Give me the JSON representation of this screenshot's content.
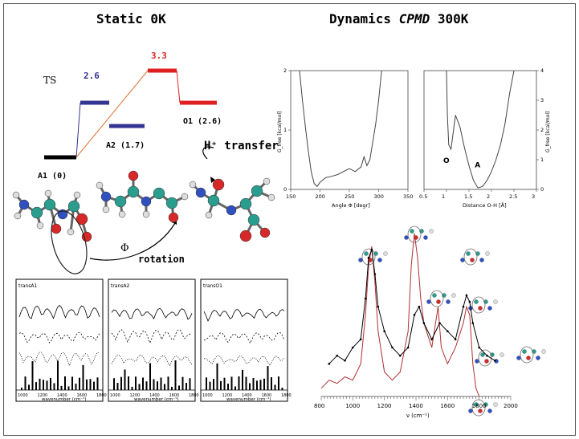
{
  "left": {
    "title": "Static 0K",
    "energy": {
      "ts_label": "TS",
      "ts_value": "2.6",
      "a2_label": "A2 (1.7)",
      "peak_value": "3.3",
      "o1_label": "O1 (2.6)",
      "a1_label": "A1 (0)",
      "transfer_label": "H⁺ transfer",
      "phi_symbol": "Φ",
      "rotation_label": "rotation"
    },
    "spectra": [
      {
        "name": "transA1"
      },
      {
        "name": "transA2"
      },
      {
        "name": "transO1"
      }
    ],
    "spectra_xticks": [
      "1000",
      "1200",
      "1400",
      "1600",
      "1800"
    ],
    "spectra_xlabel": "wavenumber (cm⁻¹)"
  },
  "right": {
    "title": "Dynamics CPMD 300K",
    "title_parts": [
      "Dynamics ",
      "CPMD",
      " 300K"
    ]
  },
  "chart_data": [
    {
      "type": "line",
      "title": "",
      "xlabel": "Angle Φ [degr]",
      "ylabel": "G_free [kcal/mol]",
      "xlim": [
        150,
        350
      ],
      "ylim": [
        0,
        2
      ],
      "xticks": [
        "150",
        "200",
        "250",
        "300",
        "350"
      ],
      "yticks": [
        "0",
        "1",
        "2"
      ],
      "series": [
        {
          "x": [
            165,
            170,
            175,
            180,
            185,
            190,
            195,
            200,
            210,
            220,
            230,
            240,
            250,
            260,
            270,
            275,
            280,
            285,
            290,
            295,
            300,
            305
          ],
          "y": [
            2.0,
            1.5,
            1.05,
            0.65,
            0.3,
            0.1,
            0.05,
            0.12,
            0.2,
            0.22,
            0.25,
            0.3,
            0.35,
            0.3,
            0.38,
            0.55,
            0.4,
            0.5,
            0.8,
            1.1,
            1.5,
            2.0
          ]
        }
      ]
    },
    {
      "type": "line",
      "title": "",
      "xlabel": "Distance O-H [Å]",
      "ylabel": "G_free [kcal/mol]",
      "xlim": [
        0.5,
        3
      ],
      "ylim": [
        0,
        4
      ],
      "xticks": [
        "0.5",
        "1",
        "1.5",
        "2",
        "2.5",
        "3"
      ],
      "yticks": [
        "0",
        "1",
        "2",
        "3",
        "4"
      ],
      "annotations": [
        "O",
        "A"
      ],
      "series": [
        {
          "x": [
            1.0,
            1.02,
            1.05,
            1.1,
            1.2,
            1.3,
            1.4,
            1.5,
            1.6,
            1.7,
            1.8,
            1.9,
            2.0,
            2.1,
            2.2,
            2.3,
            2.4,
            2.5
          ],
          "y": [
            4.0,
            2.5,
            1.5,
            1.35,
            2.5,
            2.1,
            1.4,
            0.8,
            0.3,
            0.05,
            0.1,
            0.3,
            0.6,
            1.0,
            1.5,
            2.2,
            3.2,
            4.0
          ]
        }
      ]
    },
    {
      "type": "line",
      "title": "",
      "xlabel": "ν (cm⁻¹)",
      "ylabel": "",
      "xlim": [
        800,
        2000
      ],
      "xticks": [
        "800",
        "1000",
        "1200",
        "1400",
        "1600",
        "1800",
        "2000"
      ],
      "series": [
        {
          "color": "#b03030",
          "x": [
            800,
            850,
            900,
            950,
            1000,
            1050,
            1080,
            1100,
            1120,
            1140,
            1160,
            1200,
            1250,
            1300,
            1350,
            1370,
            1390,
            1410,
            1430,
            1450,
            1500,
            1540,
            1560,
            1600,
            1650,
            1700,
            1720,
            1740,
            1760,
            1780,
            1800
          ],
          "y": [
            0.05,
            0.1,
            0.08,
            0.12,
            0.1,
            0.2,
            0.5,
            0.8,
            0.92,
            0.7,
            0.4,
            0.15,
            0.1,
            0.15,
            0.4,
            0.8,
            1.0,
            0.85,
            0.6,
            0.45,
            0.3,
            0.55,
            0.3,
            0.2,
            0.3,
            0.45,
            0.55,
            0.5,
            0.2,
            0.05,
            0.0
          ]
        },
        {
          "color": "#000000",
          "x": [
            850,
            900,
            950,
            1000,
            1050,
            1080,
            1100,
            1120,
            1140,
            1160,
            1200,
            1250,
            1300,
            1350,
            1390,
            1420,
            1450,
            1500,
            1550,
            1600,
            1650,
            1700,
            1720,
            1740,
            1760,
            1800,
            1850,
            1900
          ],
          "y": [
            0.2,
            0.25,
            0.22,
            0.3,
            0.35,
            0.6,
            0.85,
            0.9,
            0.75,
            0.55,
            0.4,
            0.3,
            0.25,
            0.3,
            0.5,
            0.55,
            0.45,
            0.35,
            0.45,
            0.4,
            0.35,
            0.55,
            0.62,
            0.58,
            0.45,
            0.3,
            0.25,
            0.22
          ]
        }
      ]
    }
  ]
}
